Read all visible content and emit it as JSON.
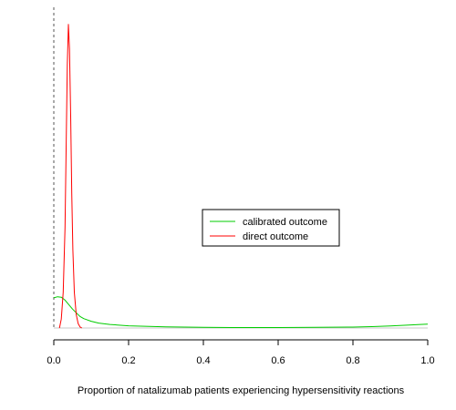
{
  "chart_data": {
    "type": "line",
    "title": "",
    "xlabel": "Proportion of natalizumab patients experiencing hypersensitivity reactions",
    "ylabel": "",
    "xlim": [
      0.0,
      1.0
    ],
    "x_ticks": [
      "0.0",
      "0.2",
      "0.4",
      "0.6",
      "0.8",
      "1.0"
    ],
    "grid": false,
    "legend_position": "center-right",
    "reference_line": {
      "x": 0.0,
      "style": "dashed"
    },
    "series": [
      {
        "name": "calibrated outcome",
        "color": "#00cc00",
        "x": [
          0.0,
          0.01,
          0.02,
          0.03,
          0.04,
          0.05,
          0.06,
          0.07,
          0.08,
          0.1,
          0.12,
          0.15,
          0.2,
          0.3,
          0.4,
          0.5,
          0.6,
          0.7,
          0.8,
          0.85,
          0.9,
          0.95,
          0.98,
          1.0
        ],
        "y": [
          1.35,
          1.4,
          1.38,
          1.25,
          1.05,
          0.85,
          0.68,
          0.52,
          0.42,
          0.3,
          0.22,
          0.16,
          0.1,
          0.05,
          0.03,
          0.02,
          0.02,
          0.03,
          0.04,
          0.06,
          0.09,
          0.13,
          0.16,
          0.17
        ]
      },
      {
        "name": "direct outcome",
        "color": "#ff0000",
        "x": [
          0.015,
          0.02,
          0.025,
          0.03,
          0.033,
          0.036,
          0.039,
          0.042,
          0.045,
          0.048,
          0.051,
          0.055,
          0.06,
          0.065,
          0.07,
          0.075
        ],
        "y": [
          0.0,
          0.4,
          1.6,
          4.5,
          8.0,
          11.8,
          13.6,
          12.5,
          9.5,
          6.0,
          3.5,
          1.6,
          0.6,
          0.2,
          0.05,
          0.0
        ]
      }
    ]
  }
}
